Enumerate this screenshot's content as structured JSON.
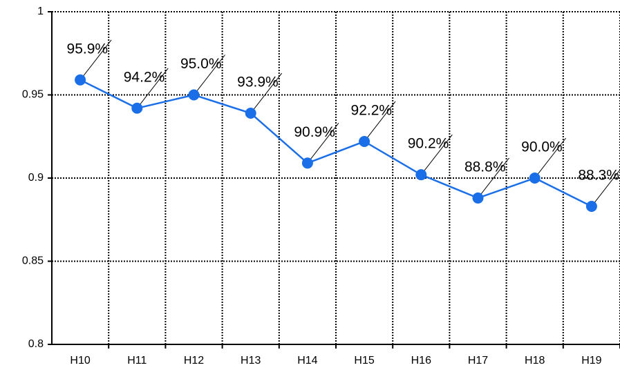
{
  "chart_data": {
    "type": "line",
    "categories": [
      "H10",
      "H11",
      "H12",
      "H13",
      "H14",
      "H15",
      "H16",
      "H17",
      "H18",
      "H19"
    ],
    "series": [
      {
        "name": null,
        "color": "#1a6fe8",
        "values": [
          0.959,
          0.942,
          0.95,
          0.939,
          0.909,
          0.922,
          0.902,
          0.888,
          0.9,
          0.883
        ],
        "value_labels": [
          "95.9%",
          "94.2%",
          "95.0%",
          "93.9%",
          "90.9%",
          "92.2%",
          "90.2%",
          "88.8%",
          "90.0%",
          "88.3%"
        ]
      }
    ],
    "ylim": [
      0.8,
      1
    ],
    "yticks": [
      0.8,
      0.85,
      0.9,
      0.95,
      1
    ],
    "grid": true
  }
}
